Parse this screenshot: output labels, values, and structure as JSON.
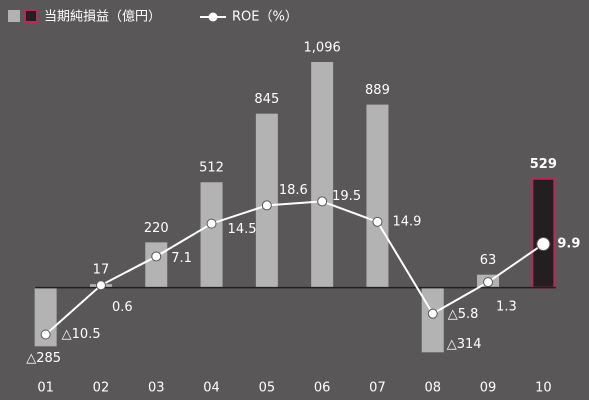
{
  "chart_data": {
    "type": "bar+line",
    "categories": [
      "01",
      "02",
      "03",
      "04",
      "05",
      "06",
      "07",
      "08",
      "09",
      "10"
    ],
    "series": [
      {
        "name": "当期純損益（億円）",
        "type": "bar",
        "color": "#b3b3b3",
        "colors": [
          "#b3b3b3",
          "#b3b3b3",
          "#b3b3b3",
          "#b3b3b3",
          "#b3b3b3",
          "#b3b3b3",
          "#b3b3b3",
          "#b3b3b3",
          "#b3b3b3",
          "#231f20"
        ],
        "edgecolors": [
          null,
          null,
          null,
          null,
          null,
          null,
          null,
          null,
          null,
          "#b8285a"
        ],
        "values": [
          -285,
          17,
          220,
          512,
          845,
          1096,
          889,
          -314,
          63,
          529
        ],
        "value_labels": [
          "△285",
          "17",
          "220",
          "512",
          "845",
          "1,096",
          "889",
          "△314",
          "63",
          "529"
        ]
      },
      {
        "name": "ROE（%）",
        "type": "line",
        "axis": "y2",
        "color": "#ffffff",
        "values": [
          -10.5,
          0.6,
          7.1,
          14.5,
          18.6,
          19.5,
          14.9,
          -5.8,
          1.3,
          9.9
        ],
        "value_labels": [
          "△10.5",
          "0.6",
          "7.1",
          "14.5",
          "18.6",
          "19.5",
          "14.9",
          "△5.8",
          "1.3",
          "9.9"
        ]
      }
    ],
    "ylim": [
      -400,
      1300
    ],
    "y2lim": [
      -18.5,
      60.4
    ]
  }
}
